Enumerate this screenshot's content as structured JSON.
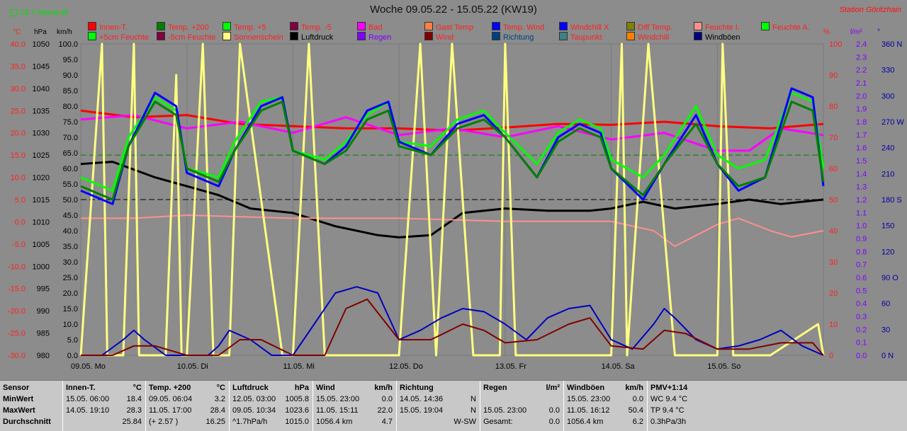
{
  "header": {
    "title": "Woche 09.05.22 - 15.05.22 (KW19)",
    "station": "Station Göritzhain",
    "monat": "13.7 Monat-Ø"
  },
  "legend": [
    {
      "label": "Innen-T.",
      "color": "#ff0000",
      "text": "#ff2020"
    },
    {
      "label": "Temp. +200",
      "color": "#008000",
      "text": "#ff2020"
    },
    {
      "label": "Temp. +5",
      "color": "#00ff00",
      "text": "#ff2020"
    },
    {
      "label": "Temp. -5",
      "color": "#800040",
      "text": "#ff2020"
    },
    {
      "label": "Bad",
      "color": "#ff00ff",
      "text": "#ff2020"
    },
    {
      "label": "Gast Temp",
      "color": "#ff8040",
      "text": "#ff2020"
    },
    {
      "label": "Temp. Wind",
      "color": "#0000ff",
      "text": "#ff2020"
    },
    {
      "label": "Windchill X",
      "color": "#0000ff",
      "text": "#ff2020"
    },
    {
      "label": "Diff Temp.",
      "color": "#808000",
      "text": "#ff2020"
    },
    {
      "label": "Feuchte I.",
      "color": "#ff9090",
      "text": "#ff2020"
    },
    {
      "label": "Feuchte A.",
      "color": "#00ff00",
      "text": "#ff2020"
    },
    {
      "label": "+5cm Feuchte",
      "color": "#00ff00",
      "text": "#ff2020"
    },
    {
      "label": "-5cm Feuchte",
      "color": "#800040",
      "text": "#ff2020"
    },
    {
      "label": "Sonnenschein",
      "color": "#ffff80",
      "text": "#ff2020"
    },
    {
      "label": "Luftdruck",
      "color": "#000000",
      "text": "#000000"
    },
    {
      "label": "Regen",
      "color": "#8000ff",
      "text": "#8000ff"
    },
    {
      "label": "Wind",
      "color": "#800000",
      "text": "#ff2020"
    },
    {
      "label": "Richtung",
      "color": "#004080",
      "text": "#004080"
    },
    {
      "label": "Taupunkt",
      "color": "#408080",
      "text": "#ff2020"
    },
    {
      "label": "Windchill",
      "color": "#ff8000",
      "text": "#ff2020"
    },
    {
      "label": "Windböen",
      "color": "#000080",
      "text": "#000000"
    }
  ],
  "units": {
    "temp": "°C",
    "press": "hPa",
    "wind": "km/h",
    "pct": "%",
    "rain": "l/m²",
    "dir": "°"
  },
  "chart_data": {
    "type": "line",
    "x_ticks": [
      "09.05. Mo",
      "10.05. Di",
      "11.05. Mi",
      "12.05. Do",
      "13.05. Fr",
      "14.05. Sa",
      "15.05. So"
    ],
    "axes": {
      "temp": {
        "unit": "°C",
        "ylim": [
          -30,
          40
        ],
        "ticks": [
          "40.0",
          "35.0",
          "30.0",
          "25.0",
          "20.0",
          "15.0",
          "10.0",
          "5.0",
          "0.0",
          "-5.0",
          "-10.0",
          "-15.0",
          "-20.0",
          "-25.0",
          "-30.0"
        ]
      },
      "press": {
        "unit": "hPa",
        "ylim": [
          980,
          1050
        ],
        "ticks": [
          "1050",
          "1045",
          "1040",
          "1035",
          "1030",
          "1025",
          "1020",
          "1015",
          "1010",
          "1005",
          "1000",
          "995",
          "990",
          "985",
          "980"
        ]
      },
      "wind": {
        "unit": "km/h",
        "ylim": [
          0,
          100
        ],
        "ticks": [
          "100.0",
          "95.0",
          "90.0",
          "85.0",
          "80.0",
          "75.0",
          "70.0",
          "65.0",
          "60.0",
          "55.0",
          "50.0",
          "45.0",
          "40.0",
          "35.0",
          "30.0",
          "25.0",
          "20.0",
          "15.0",
          "10.0",
          "5.0",
          "0.0"
        ]
      },
      "pct": {
        "unit": "%",
        "ylim": [
          0,
          100
        ],
        "ticks": [
          "100",
          "90",
          "80",
          "70",
          "60",
          "50",
          "40",
          "30",
          "20",
          "10",
          "0"
        ]
      },
      "rain": {
        "unit": "l/m²",
        "ylim": [
          0,
          2.5
        ],
        "ticks": [
          "2.4",
          "2.3",
          "2.2",
          "2.1",
          "2.0",
          "1.9",
          "1.8",
          "1.7",
          "1.6",
          "1.5",
          "1.4",
          "1.3",
          "1.2",
          "1.1",
          "1.0",
          "0.9",
          "0.8",
          "0.7",
          "0.6",
          "0.5",
          "0.4",
          "0.3",
          "0.2",
          "0.1",
          "0.0"
        ]
      },
      "dir": {
        "unit": "°",
        "ylim": [
          0,
          360
        ],
        "ticks": [
          "360 N",
          "330",
          "300",
          "270 W",
          "240",
          "210",
          "180 S",
          "150",
          "120",
          "90 O",
          "60",
          "30",
          "0 N"
        ]
      }
    },
    "series": [
      {
        "name": "Innen-T.",
        "axis": "temp",
        "color": "#ff0000",
        "width": 3,
        "x": [
          0,
          0.5,
          1,
          1.5,
          2,
          2.5,
          3,
          3.5,
          4,
          4.5,
          5,
          5.5,
          6,
          6.5,
          7
        ],
        "y": [
          25,
          23.5,
          24,
          22,
          21.5,
          21,
          21,
          20.5,
          21.2,
          22,
          21.8,
          22.5,
          21.5,
          21,
          22
        ]
      },
      {
        "name": "Luftdruck",
        "axis": "press",
        "color": "#000000",
        "width": 3,
        "x": [
          0,
          0.3,
          0.7,
          1,
          1.3,
          1.6,
          2,
          2.4,
          2.8,
          3,
          3.3,
          3.6,
          4,
          4.4,
          4.8,
          5,
          5.3,
          5.6,
          6,
          6.3,
          6.6,
          7
        ],
        "y": [
          1023,
          1023.5,
          1020,
          1018,
          1016,
          1013,
          1012,
          1009,
          1007,
          1006.5,
          1007,
          1012,
          1013,
          1012.5,
          1012.5,
          1013,
          1014.5,
          1013,
          1014,
          1015,
          1014,
          1015
        ]
      },
      {
        "name": "Bad",
        "axis": "temp",
        "color": "#ff00ff",
        "width": 3,
        "x": [
          0,
          0.5,
          1,
          1.5,
          2,
          2.5,
          3,
          3.5,
          4,
          4.5,
          5,
          5.5,
          6,
          6.3,
          6.6,
          7
        ],
        "y": [
          23,
          24,
          21,
          22.5,
          20,
          23.5,
          19.5,
          21,
          19,
          21.5,
          18.5,
          20,
          16,
          16,
          21,
          19.5
        ]
      },
      {
        "name": "Feuchte I.",
        "axis": "pct",
        "color": "#ff9090",
        "width": 2,
        "x": [
          0,
          0.5,
          1,
          2,
          3,
          4,
          5,
          5.4,
          5.6,
          6,
          6.2,
          6.5,
          6.7,
          7
        ],
        "y": [
          44,
          44,
          45,
          44,
          44,
          43,
          43,
          40,
          35,
          42,
          44,
          40,
          38,
          40
        ]
      },
      {
        "name": "Sonnenschein",
        "axis": "pct",
        "color": "#ffff80",
        "width": 3,
        "x": [
          0,
          0.2,
          0.25,
          0.4,
          0.5,
          0.55,
          0.8,
          0.9,
          0.95,
          1,
          1.15,
          1.25,
          1.4,
          1.5,
          1.9,
          2,
          2.15,
          2.3,
          2.4,
          2.5,
          3,
          3.2,
          3.35,
          3.5,
          3.7,
          3.95,
          4,
          4.1,
          4.2,
          4.5,
          5,
          5.1,
          5.15,
          5.35,
          5.6,
          6,
          6.05,
          6.1,
          6.15,
          6.5,
          6.95,
          7
        ],
        "y": [
          0,
          100,
          0,
          0,
          100,
          0,
          0,
          90,
          0,
          0,
          100,
          0,
          0,
          100,
          0,
          0,
          100,
          0,
          0,
          0,
          0,
          100,
          0,
          100,
          0,
          0,
          100,
          0,
          0,
          0,
          0,
          100,
          0,
          100,
          0,
          0,
          100,
          60,
          0,
          0,
          10,
          0
        ]
      },
      {
        "name": "Windböen",
        "axis": "wind",
        "color": "#0000c0",
        "width": 2,
        "x": [
          0,
          0.2,
          0.4,
          0.5,
          0.6,
          0.8,
          1,
          1.2,
          1.3,
          1.4,
          1.6,
          1.8,
          2,
          2.2,
          2.4,
          2.6,
          2.8,
          3,
          3.2,
          3.4,
          3.6,
          3.8,
          4,
          4.2,
          4.4,
          4.6,
          4.8,
          5,
          5.2,
          5.4,
          5.5,
          5.6,
          5.8,
          6,
          6.2,
          6.4,
          6.6,
          6.8,
          7
        ],
        "y": [
          0,
          0,
          5,
          8,
          5,
          0,
          0,
          0,
          3,
          8,
          5,
          0,
          0,
          10,
          20,
          22,
          20,
          5,
          8,
          12,
          15,
          14,
          10,
          5,
          12,
          15,
          16,
          5,
          2,
          10,
          15,
          12,
          5,
          2,
          3,
          5,
          8,
          3,
          0
        ]
      },
      {
        "name": "Wind",
        "axis": "wind",
        "color": "#800000",
        "width": 2,
        "x": [
          0,
          0.3,
          0.5,
          0.7,
          1,
          1.3,
          1.5,
          1.7,
          2,
          2.3,
          2.5,
          2.7,
          3,
          3.3,
          3.6,
          3.8,
          4,
          4.3,
          4.6,
          4.8,
          5,
          5.3,
          5.5,
          5.7,
          6,
          6.3,
          6.6,
          6.9,
          7
        ],
        "y": [
          0,
          0,
          3,
          3,
          0,
          0,
          5,
          5,
          0,
          0,
          15,
          18,
          5,
          5,
          10,
          8,
          4,
          5,
          10,
          12,
          3,
          2,
          8,
          7,
          2,
          2,
          4,
          4,
          0
        ]
      },
      {
        "name": "Temp. +5",
        "axis": "temp",
        "color": "#00ff00",
        "width": 3,
        "x": [
          0,
          0.3,
          0.45,
          0.7,
          0.9,
          1,
          1.3,
          1.45,
          1.7,
          1.9,
          2,
          2.3,
          2.5,
          2.7,
          2.9,
          3,
          3.3,
          3.55,
          3.8,
          4,
          4.3,
          4.5,
          4.7,
          4.9,
          5,
          5.3,
          5.5,
          5.8,
          6,
          6.2,
          6.45,
          6.7,
          6.9,
          7
        ],
        "y": [
          10,
          7,
          19,
          28,
          25,
          12,
          10,
          18,
          27,
          28,
          16,
          14,
          18,
          24,
          27,
          18,
          17,
          23,
          25,
          20,
          13,
          20,
          23,
          21,
          14,
          10,
          15,
          26,
          15,
          12,
          14,
          29,
          27,
          12
        ]
      },
      {
        "name": "Temp. Wind",
        "axis": "temp",
        "color": "#0000ff",
        "width": 3,
        "x": [
          0,
          0.3,
          0.45,
          0.7,
          0.9,
          1,
          1.3,
          1.45,
          1.7,
          1.9,
          2,
          2.3,
          2.5,
          2.7,
          2.9,
          3,
          3.3,
          3.55,
          3.8,
          4,
          4.3,
          4.5,
          4.7,
          4.9,
          5,
          5.3,
          5.5,
          5.8,
          6,
          6.2,
          6.45,
          6.7,
          6.9,
          7
        ],
        "y": [
          7,
          4,
          17,
          29,
          26,
          11,
          8,
          16,
          26,
          28,
          16,
          13,
          17,
          25,
          27,
          18,
          15,
          22,
          24,
          19,
          10,
          19,
          22,
          20,
          12,
          5,
          13,
          24,
          13,
          7,
          10,
          30,
          28,
          8
        ]
      },
      {
        "name": "Temp. +200",
        "axis": "temp",
        "color": "#008000",
        "width": 3,
        "x": [
          0,
          0.3,
          0.45,
          0.7,
          0.9,
          1,
          1.3,
          1.45,
          1.7,
          1.9,
          2,
          2.3,
          2.5,
          2.7,
          2.9,
          3,
          3.3,
          3.55,
          3.8,
          4,
          4.3,
          4.5,
          4.7,
          4.9,
          5,
          5.3,
          5.5,
          5.8,
          6,
          6.2,
          6.45,
          6.7,
          6.9,
          7
        ],
        "y": [
          8,
          5,
          17,
          27,
          24,
          12,
          9,
          16,
          25,
          27,
          16,
          13,
          16,
          23,
          25,
          17,
          15,
          21,
          23,
          19,
          10,
          18,
          21,
          19,
          12,
          6,
          13,
          22,
          13,
          8,
          10,
          27,
          25,
          9
        ]
      }
    ]
  },
  "stats": {
    "headers": {
      "sensor": "Sensor",
      "innen": "Innen-T.",
      "innen_u": "°C",
      "temp200": "Temp. +200",
      "temp200_u": "°C",
      "luft": "Luftdruck",
      "luft_u": "hPa",
      "wind": "Wind",
      "wind_u": "km/h",
      "richtung": "Richtung",
      "regen": "Regen",
      "regen_u": "l/m²",
      "boeen": "Windböen",
      "boeen_u": "km/h",
      "pmv": "PMV+1:14"
    },
    "row_labels": {
      "min": "MinWert",
      "max": "MaxWert",
      "avg": "Durchschnitt"
    },
    "innen": {
      "min_t": "15.05.  06:00",
      "min_v": "18.4",
      "max_t": "14.05.  19:10",
      "max_v": "28.3",
      "avg": "25.84"
    },
    "temp200": {
      "min_t": "09.05.  06:04",
      "min_v": "3.2",
      "max_t": "11.05.  17:00",
      "max_v": "28.4",
      "avg_l": "(+ 2.57 )",
      "avg": "16.25"
    },
    "luft": {
      "min_t": "12.05.  03:00",
      "min_v": "1005.8",
      "max_t": "09.05.  10:34",
      "max_v": "1023.6",
      "avg_l": "^1.7hPa/h",
      "avg": "1015.0"
    },
    "wind": {
      "min_t": "15.05.  23:00",
      "min_v": "0.0",
      "max_t": "11.05.  15:11",
      "max_v": "22.0",
      "avg_l": "1056.4 km",
      "avg": "4.7"
    },
    "richtung": {
      "min_t": "14.05.  14:36",
      "min_v": "N",
      "max_t": "15.05.  19:04",
      "max_v": "N",
      "avg": "W-SW"
    },
    "regen": {
      "max_t": "15.05.  23:00",
      "max_v": "0.0",
      "avg_l": "Gesamt:",
      "avg": "0.0"
    },
    "boeen": {
      "min_t": "15.05.  23:00",
      "min_v": "0.0",
      "max_t": "11.05.  16:12",
      "max_v": "50.4",
      "avg_l": "1056.4 km",
      "avg": "6.2"
    },
    "pmv": {
      "r1": "WC 9.4 °C",
      "r2": "TP 9.4 °C",
      "r3": "0.3hPa/3h"
    }
  }
}
